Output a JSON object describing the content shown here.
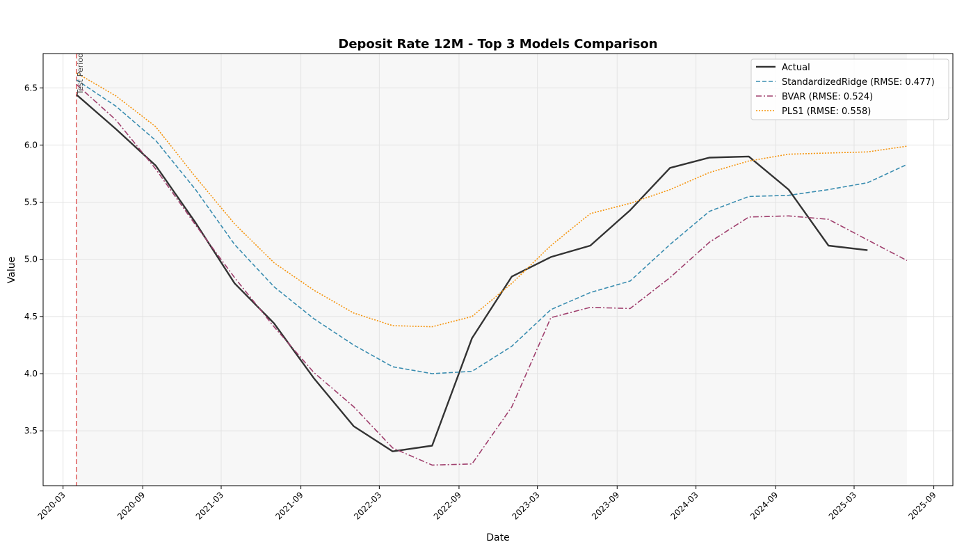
{
  "chart_data": {
    "type": "line",
    "title": "Deposit Rate 12M - Top 3 Models Comparison",
    "xlabel": "Date",
    "ylabel": "Value",
    "x_ticks": [
      "2020-03",
      "2020-09",
      "2021-03",
      "2021-09",
      "2022-03",
      "2022-09",
      "2023-03",
      "2023-09",
      "2024-03",
      "2024-09",
      "2025-03",
      "2025-09"
    ],
    "y_ticks": [
      3.5,
      4.0,
      4.5,
      5.0,
      5.5,
      6.0,
      6.5
    ],
    "xlim": [
      "2020-01-15",
      "2025-10-15"
    ],
    "ylim": [
      3.02,
      6.8
    ],
    "grid": true,
    "legend_position": "top-right",
    "test_period": {
      "label": "Test Period",
      "start": "2020-04-01",
      "end": "2025-07-01",
      "line_color": "#e06666",
      "shade_color": "#f7f7f7"
    },
    "series": [
      {
        "name": "Actual",
        "color": "#333333",
        "style": "solid",
        "x": [
          "2020-04-01",
          "2020-07-01",
          "2020-10-01",
          "2021-01-01",
          "2021-04-01",
          "2021-07-01",
          "2021-10-01",
          "2022-01-01",
          "2022-04-01",
          "2022-07-01",
          "2022-10-01",
          "2023-01-01",
          "2023-04-01",
          "2023-07-01",
          "2023-10-01",
          "2024-01-01",
          "2024-04-01",
          "2024-07-01",
          "2024-10-01",
          "2025-01-01",
          "2025-04-01"
        ],
        "y": [
          6.44,
          6.14,
          5.82,
          5.32,
          4.79,
          4.44,
          3.96,
          3.54,
          3.32,
          3.37,
          4.31,
          4.85,
          5.02,
          5.12,
          5.43,
          5.8,
          5.89,
          5.9,
          5.61,
          5.12,
          5.08
        ]
      },
      {
        "name": "StandardizedRidge (RMSE: 0.477)",
        "color": "#3a8db0",
        "style": "dashed",
        "x": [
          "2020-04-01",
          "2020-07-01",
          "2020-10-01",
          "2021-01-01",
          "2021-04-01",
          "2021-07-01",
          "2021-10-01",
          "2022-01-01",
          "2022-04-01",
          "2022-07-01",
          "2022-10-01",
          "2023-01-01",
          "2023-04-01",
          "2023-07-01",
          "2023-10-01",
          "2024-01-01",
          "2024-04-01",
          "2024-07-01",
          "2024-10-01",
          "2025-01-01",
          "2025-04-01",
          "2025-07-01"
        ],
        "y": [
          6.57,
          6.34,
          6.04,
          5.61,
          5.13,
          4.76,
          4.48,
          4.25,
          4.06,
          4.0,
          4.02,
          4.24,
          4.56,
          4.71,
          4.81,
          5.13,
          5.42,
          5.55,
          5.56,
          5.61,
          5.67,
          5.83
        ]
      },
      {
        "name": "BVAR (RMSE: 0.524)",
        "color": "#a0406e",
        "style": "dashdot",
        "x": [
          "2020-04-01",
          "2020-07-01",
          "2020-10-01",
          "2021-01-01",
          "2021-04-01",
          "2021-07-01",
          "2021-10-01",
          "2022-01-01",
          "2022-04-01",
          "2022-07-01",
          "2022-10-01",
          "2023-01-01",
          "2023-04-01",
          "2023-07-01",
          "2023-10-01",
          "2024-01-01",
          "2024-04-01",
          "2024-07-01",
          "2024-10-01",
          "2025-01-01",
          "2025-04-01",
          "2025-07-01"
        ],
        "y": [
          6.53,
          6.22,
          5.79,
          5.3,
          4.84,
          4.41,
          4.01,
          3.71,
          3.35,
          3.2,
          3.21,
          3.71,
          4.49,
          4.58,
          4.57,
          4.84,
          5.15,
          5.37,
          5.38,
          5.35,
          5.17,
          4.99
        ]
      },
      {
        "name": "PLS1 (RMSE: 0.558)",
        "color": "#f5950f",
        "style": "dotted",
        "x": [
          "2020-04-01",
          "2020-07-01",
          "2020-10-01",
          "2021-01-01",
          "2021-04-01",
          "2021-07-01",
          "2021-10-01",
          "2022-01-01",
          "2022-04-01",
          "2022-07-01",
          "2022-10-01",
          "2023-01-01",
          "2023-04-01",
          "2023-07-01",
          "2023-10-01",
          "2024-01-01",
          "2024-04-01",
          "2024-07-01",
          "2024-10-01",
          "2025-01-01",
          "2025-04-01",
          "2025-07-01"
        ],
        "y": [
          6.63,
          6.43,
          6.16,
          5.72,
          5.31,
          4.97,
          4.73,
          4.53,
          4.42,
          4.41,
          4.5,
          4.79,
          5.12,
          5.4,
          5.49,
          5.61,
          5.76,
          5.86,
          5.92,
          5.93,
          5.94,
          5.99
        ]
      }
    ]
  }
}
